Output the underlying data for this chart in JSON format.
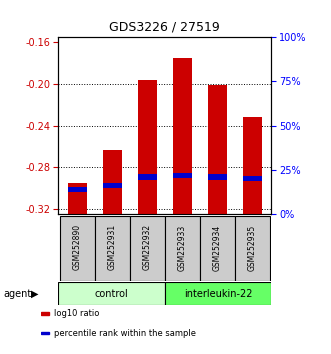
{
  "title": "GDS3226 / 27519",
  "samples": [
    "GSM252890",
    "GSM252931",
    "GSM252932",
    "GSM252933",
    "GSM252934",
    "GSM252935"
  ],
  "log10_ratio": [
    -0.295,
    -0.263,
    -0.196,
    -0.175,
    -0.201,
    -0.232
  ],
  "percentile_rank": [
    14,
    16,
    21,
    22,
    21,
    20
  ],
  "bar_bottom": -0.325,
  "bar_color": "#cc0000",
  "blue_color": "#0000cc",
  "ylim_left": [
    -0.325,
    -0.155
  ],
  "ylim_right": [
    0,
    100
  ],
  "yticks_left": [
    -0.32,
    -0.28,
    -0.24,
    -0.2,
    -0.16
  ],
  "yticks_right": [
    0,
    25,
    50,
    75,
    100
  ],
  "groups": [
    {
      "label": "control",
      "indices": [
        0,
        1,
        2
      ],
      "color": "#ccffcc"
    },
    {
      "label": "interleukin-22",
      "indices": [
        3,
        4,
        5
      ],
      "color": "#66ff66"
    }
  ],
  "agent_label": "agent",
  "legend_items": [
    {
      "label": "log10 ratio",
      "color": "#cc0000"
    },
    {
      "label": "percentile rank within the sample",
      "color": "#0000cc"
    }
  ],
  "bar_width": 0.55,
  "sample_box_color": "#cccccc"
}
